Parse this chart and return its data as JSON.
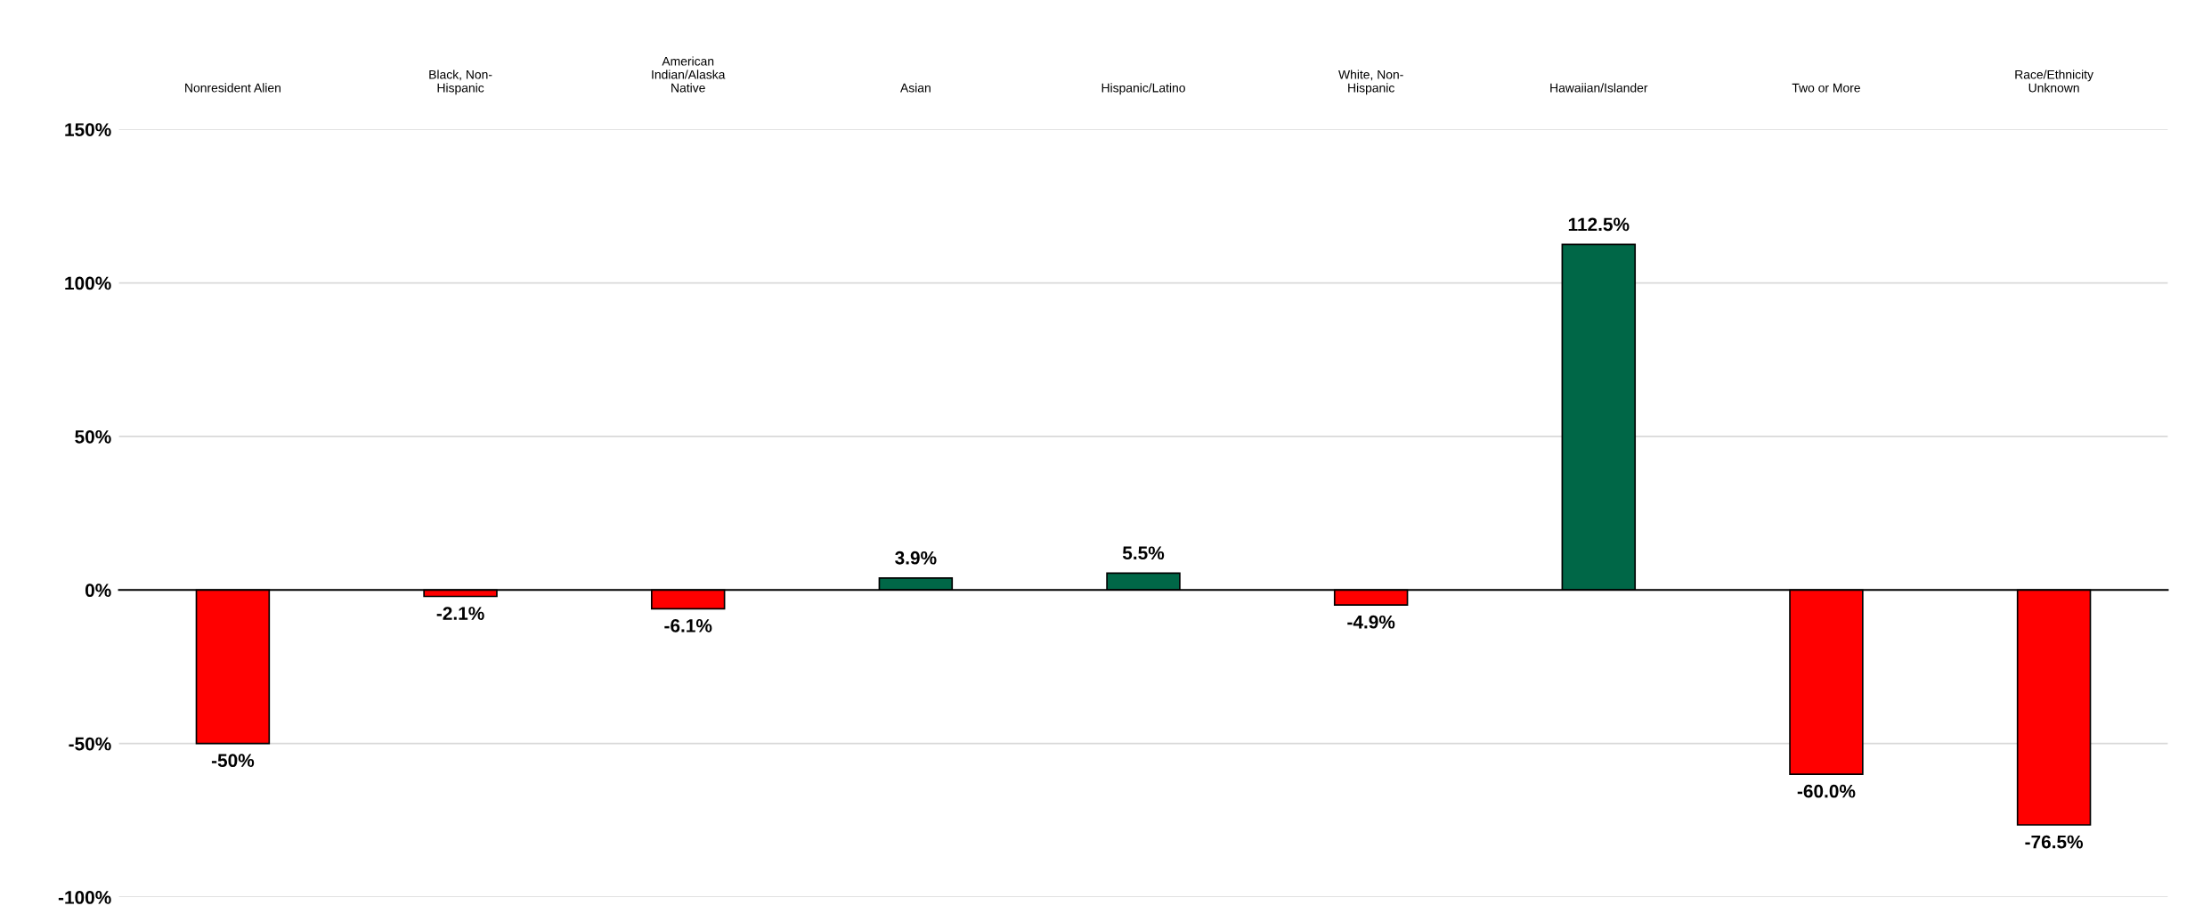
{
  "chart_data": {
    "type": "bar",
    "categories": [
      "Nonresident Alien",
      "Black, Non-\nHispanic",
      "American\nIndian/Alaska\nNative",
      "Asian",
      "Hispanic/Latino",
      "White, Non-\nHispanic",
      "Hawaiian/Islander",
      "Two or More",
      "Race/Ethnicity\nUnknown"
    ],
    "values": [
      -50,
      -2.1,
      -6.1,
      3.9,
      5.5,
      -4.9,
      112.5,
      -60.0,
      -76.5
    ],
    "value_labels": [
      "-50%",
      "-2.1%",
      "-6.1%",
      "3.9%",
      "5.5%",
      "-4.9%",
      "112.5%",
      "-60.0%",
      "-76.5%"
    ],
    "colors": [
      "#ff0000",
      "#ff0000",
      "#ff0000",
      "#006747",
      "#006747",
      "#ff0000",
      "#006747",
      "#ff0000",
      "#ff0000"
    ],
    "ylim": [
      -100,
      150
    ],
    "yticks": [
      {
        "value": -100,
        "label": "-100%"
      },
      {
        "value": -50,
        "label": "-50%"
      },
      {
        "value": 0,
        "label": "0%"
      },
      {
        "value": 50,
        "label": "50%"
      },
      {
        "value": 100,
        "label": "100%"
      },
      {
        "value": 150,
        "label": "150%"
      }
    ],
    "grid": "y",
    "legend": false
  }
}
